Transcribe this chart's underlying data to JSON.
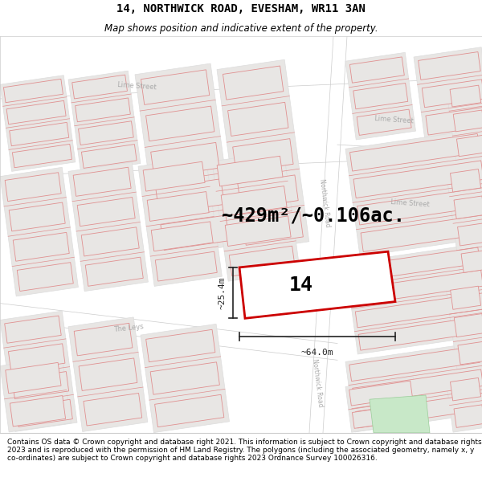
{
  "title": "14, NORTHWICK ROAD, EVESHAM, WR11 3AN",
  "subtitle": "Map shows position and indicative extent of the property.",
  "footer": "Contains OS data © Crown copyright and database right 2021. This information is subject to Crown copyright and database rights 2023 and is reproduced with the permission of HM Land Registry. The polygons (including the associated geometry, namely x, y co-ordinates) are subject to Crown copyright and database rights 2023 Ordnance Survey 100026316.",
  "area_label": "~429m²/~0.106ac.",
  "width_label": "~64.0m",
  "height_label": "~25.4m",
  "property_number": "14",
  "map_bg": "#ffffff",
  "building_fill": "#e8e6e4",
  "building_edge": "#e09090",
  "plot_edge_color": "#dddddd",
  "highlight_color": "#cc0000",
  "street_label_color": "#aaaaaa",
  "dim_color": "#222222",
  "title_fontsize": 10,
  "subtitle_fontsize": 8.5,
  "footer_fontsize": 6.5,
  "area_fontsize": 17,
  "dim_fontsize": 8,
  "number_fontsize": 18
}
